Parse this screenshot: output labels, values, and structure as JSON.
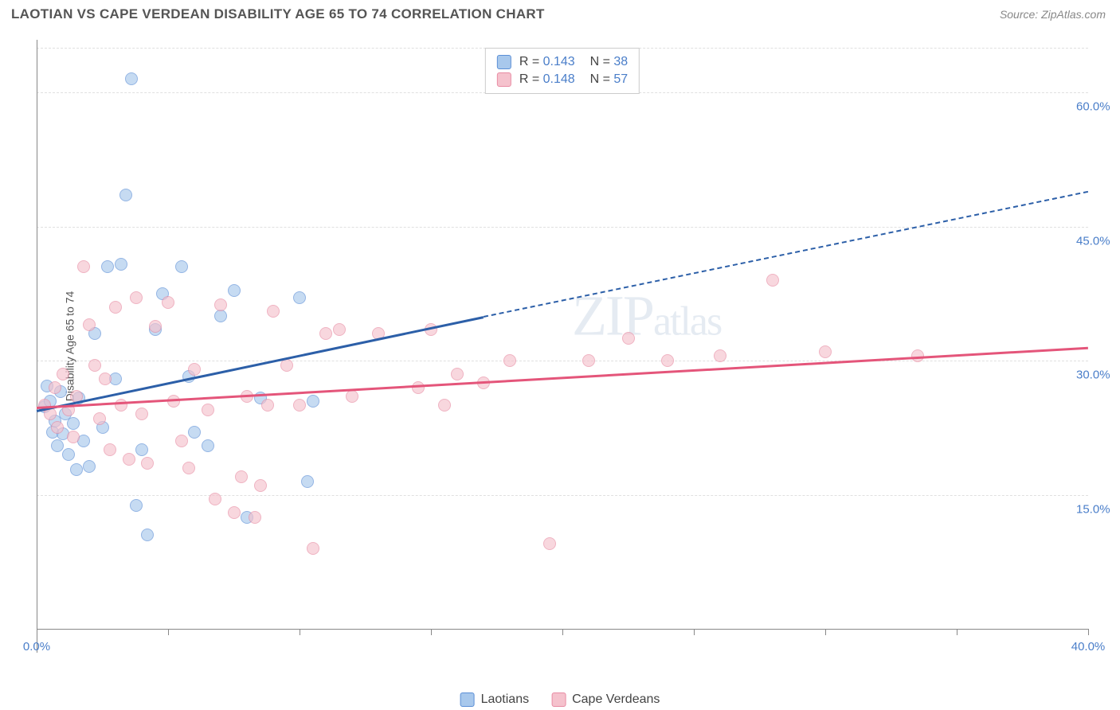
{
  "header": {
    "title": "LAOTIAN VS CAPE VERDEAN DISABILITY AGE 65 TO 74 CORRELATION CHART",
    "source": "Source: ZipAtlas.com"
  },
  "chart": {
    "type": "scatter",
    "y_axis_label": "Disability Age 65 to 74",
    "xlim": [
      0,
      40
    ],
    "ylim": [
      0,
      65
    ],
    "x_ticks": [
      0,
      5,
      10,
      15,
      20,
      25,
      30,
      35,
      40
    ],
    "x_tick_labels": {
      "0": "0.0%",
      "40": "40.0%"
    },
    "y_ticks": [
      15,
      30,
      45,
      60
    ],
    "y_tick_labels": {
      "15": "15.0%",
      "30": "30.0%",
      "45": "45.0%",
      "60": "60.0%"
    },
    "grid_color": "#e0e0e0",
    "axis_color": "#888888",
    "background_color": "#ffffff",
    "watermark": "ZIPatlas",
    "series": [
      {
        "name": "Laotians",
        "color_fill": "#a8c8ec",
        "color_stroke": "#5b8fd6",
        "R": "0.143",
        "N": "38",
        "trend": {
          "x1": 0,
          "y1": 24.5,
          "x2": 17,
          "y2": 35,
          "x2_ext": 40,
          "y2_ext": 49,
          "color": "#2c5fa8"
        },
        "points": [
          [
            0.3,
            24.8
          ],
          [
            0.4,
            27.2
          ],
          [
            0.5,
            25.5
          ],
          [
            0.6,
            22.0
          ],
          [
            0.7,
            23.2
          ],
          [
            0.8,
            20.5
          ],
          [
            0.9,
            26.5
          ],
          [
            1.0,
            21.8
          ],
          [
            1.1,
            24.0
          ],
          [
            1.2,
            19.5
          ],
          [
            1.4,
            23.0
          ],
          [
            1.5,
            17.8
          ],
          [
            1.6,
            25.8
          ],
          [
            1.8,
            21.0
          ],
          [
            2.0,
            18.2
          ],
          [
            2.2,
            33.0
          ],
          [
            2.5,
            22.5
          ],
          [
            2.7,
            40.5
          ],
          [
            3.0,
            28.0
          ],
          [
            3.2,
            40.8
          ],
          [
            3.4,
            48.5
          ],
          [
            3.6,
            61.5
          ],
          [
            3.8,
            13.8
          ],
          [
            4.0,
            20.0
          ],
          [
            4.2,
            10.5
          ],
          [
            4.5,
            33.5
          ],
          [
            4.8,
            37.5
          ],
          [
            5.5,
            40.5
          ],
          [
            5.8,
            28.2
          ],
          [
            6.0,
            22.0
          ],
          [
            6.5,
            20.5
          ],
          [
            7.0,
            35.0
          ],
          [
            7.5,
            37.8
          ],
          [
            8.0,
            12.5
          ],
          [
            8.5,
            25.8
          ],
          [
            10.0,
            37.0
          ],
          [
            10.3,
            16.5
          ],
          [
            10.5,
            25.5
          ]
        ]
      },
      {
        "name": "Cape Verdeans",
        "color_fill": "#f5c2cd",
        "color_stroke": "#e88ba3",
        "R": "0.148",
        "N": "57",
        "trend": {
          "x1": 0,
          "y1": 24.8,
          "x2": 40,
          "y2": 31.5,
          "color": "#e4557a"
        },
        "points": [
          [
            0.3,
            25.0
          ],
          [
            0.5,
            24.0
          ],
          [
            0.7,
            27.0
          ],
          [
            0.8,
            22.5
          ],
          [
            1.0,
            28.5
          ],
          [
            1.2,
            24.5
          ],
          [
            1.4,
            21.5
          ],
          [
            1.5,
            26.0
          ],
          [
            1.8,
            40.5
          ],
          [
            2.0,
            34.0
          ],
          [
            2.2,
            29.5
          ],
          [
            2.4,
            23.5
          ],
          [
            2.6,
            28.0
          ],
          [
            2.8,
            20.0
          ],
          [
            3.0,
            36.0
          ],
          [
            3.2,
            25.0
          ],
          [
            3.5,
            19.0
          ],
          [
            3.8,
            37.0
          ],
          [
            4.0,
            24.0
          ],
          [
            4.2,
            18.5
          ],
          [
            4.5,
            33.8
          ],
          [
            5.0,
            36.5
          ],
          [
            5.2,
            25.5
          ],
          [
            5.5,
            21.0
          ],
          [
            5.8,
            18.0
          ],
          [
            6.0,
            29.0
          ],
          [
            6.5,
            24.5
          ],
          [
            6.8,
            14.5
          ],
          [
            7.0,
            36.2
          ],
          [
            7.5,
            13.0
          ],
          [
            7.8,
            17.0
          ],
          [
            8.0,
            26.0
          ],
          [
            8.3,
            12.5
          ],
          [
            8.5,
            16.0
          ],
          [
            8.8,
            25.0
          ],
          [
            9.0,
            35.5
          ],
          [
            9.5,
            29.5
          ],
          [
            10.0,
            25.0
          ],
          [
            10.5,
            9.0
          ],
          [
            11.0,
            33.0
          ],
          [
            11.5,
            33.5
          ],
          [
            12.0,
            26.0
          ],
          [
            13.0,
            33.0
          ],
          [
            14.5,
            27.0
          ],
          [
            15.0,
            33.5
          ],
          [
            15.5,
            25.0
          ],
          [
            16.0,
            28.5
          ],
          [
            17.0,
            27.5
          ],
          [
            18.0,
            30.0
          ],
          [
            19.5,
            9.5
          ],
          [
            21.0,
            30.0
          ],
          [
            22.5,
            32.5
          ],
          [
            24.0,
            30.0
          ],
          [
            26.0,
            30.5
          ],
          [
            28.0,
            39.0
          ],
          [
            30.0,
            31.0
          ],
          [
            33.5,
            30.5
          ]
        ]
      }
    ],
    "legend_bottom": [
      {
        "label": "Laotians",
        "swatch": "blue"
      },
      {
        "label": "Cape Verdeans",
        "swatch": "pink"
      }
    ]
  }
}
